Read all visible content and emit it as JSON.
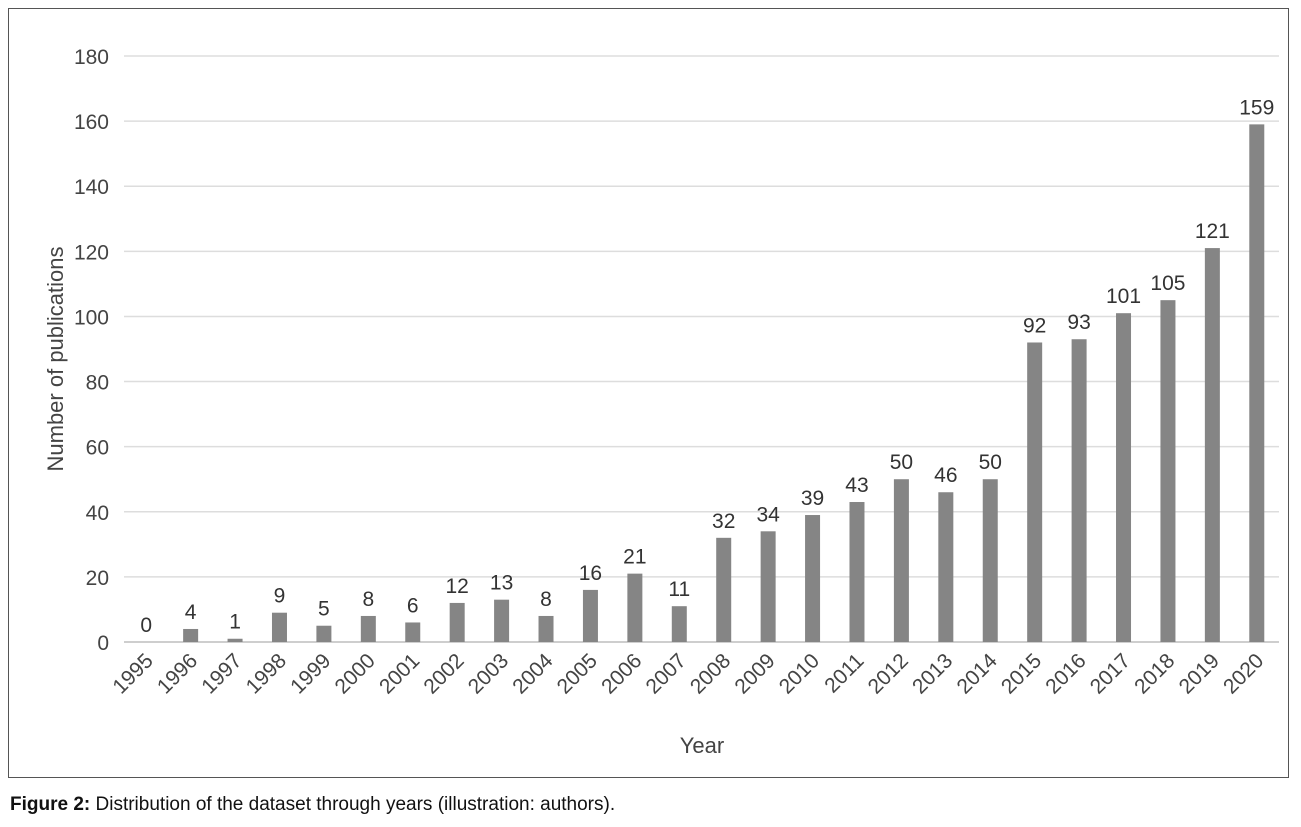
{
  "chart_data": {
    "type": "bar",
    "title": "",
    "xlabel": "Year",
    "ylabel": "Number of publications",
    "ylim": [
      0,
      180
    ],
    "yticks": [
      0,
      20,
      40,
      60,
      80,
      100,
      120,
      140,
      160,
      180
    ],
    "grid": true,
    "legend": "none",
    "bar_color": "#858585",
    "data_labels": true,
    "categories": [
      "1995",
      "1996",
      "1997",
      "1998",
      "1999",
      "2000",
      "2001",
      "2002",
      "2003",
      "2004",
      "2005",
      "2006",
      "2007",
      "2008",
      "2009",
      "2010",
      "2011",
      "2012",
      "2013",
      "2014",
      "2015",
      "2016",
      "2017",
      "2018",
      "2019",
      "2020"
    ],
    "values": [
      0,
      4,
      1,
      9,
      5,
      8,
      6,
      12,
      13,
      8,
      16,
      21,
      11,
      32,
      34,
      39,
      43,
      50,
      46,
      50,
      92,
      93,
      101,
      105,
      121,
      159
    ]
  },
  "caption": {
    "label": "Figure 2:",
    "text": " Distribution of the dataset through years (illustration: authors)."
  }
}
